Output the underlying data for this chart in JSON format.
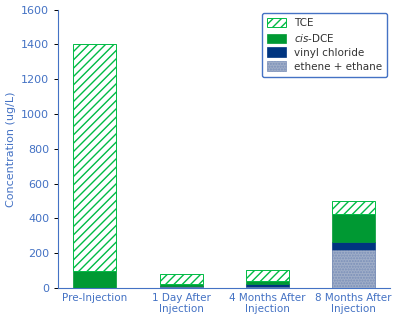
{
  "categories": [
    "Pre-Injection",
    "1 Day After\nInjection",
    "4 Months After\nInjection",
    "8 Months After\nInjection"
  ],
  "TCE": [
    1300,
    58,
    58,
    75
  ],
  "cisDCE": [
    100,
    10,
    20,
    160
  ],
  "vinylChloride": [
    0,
    5,
    15,
    45
  ],
  "ethene": [
    0,
    8,
    8,
    220
  ],
  "tce_color": "#ffffff",
  "tce_edge": "#00bb44",
  "cis_color": "#009933",
  "vinyl_color": "#003580",
  "ethene_color": "#a0aec8",
  "ethene_hatch_color": "#7a8fb8",
  "ylabel": "Concentration (ug/L)",
  "ylim": [
    0,
    1600
  ],
  "yticks": [
    0,
    200,
    400,
    600,
    800,
    1000,
    1200,
    1400,
    1600
  ],
  "legend_labels": [
    "TCE",
    "cis-DCE",
    "vinyl chloride",
    "ethene + ethane"
  ],
  "axis_color": "#4472c4",
  "bar_width": 0.5,
  "figsize": [
    4.0,
    3.2
  ],
  "dpi": 100
}
